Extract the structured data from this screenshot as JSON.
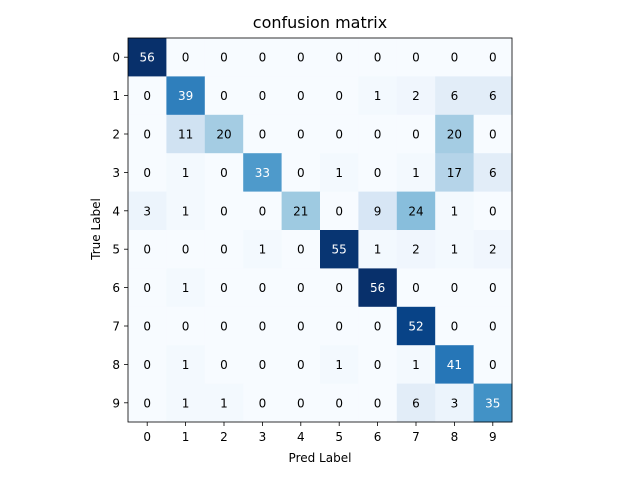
{
  "chart_data": {
    "type": "heatmap",
    "title": "confusion matrix",
    "xlabel": "Pred Label",
    "ylabel": "True Label",
    "x_categories": [
      "0",
      "1",
      "2",
      "3",
      "4",
      "5",
      "6",
      "7",
      "8",
      "9"
    ],
    "y_categories": [
      "0",
      "1",
      "2",
      "3",
      "4",
      "5",
      "6",
      "7",
      "8",
      "9"
    ],
    "colormap": "Blues",
    "value_range": [
      0,
      56
    ],
    "values": [
      [
        56,
        0,
        0,
        0,
        0,
        0,
        0,
        0,
        0,
        0
      ],
      [
        0,
        39,
        0,
        0,
        0,
        0,
        1,
        2,
        6,
        6
      ],
      [
        0,
        11,
        20,
        0,
        0,
        0,
        0,
        0,
        20,
        0
      ],
      [
        0,
        1,
        0,
        33,
        0,
        1,
        0,
        1,
        17,
        6
      ],
      [
        3,
        1,
        0,
        0,
        21,
        0,
        9,
        24,
        1,
        0
      ],
      [
        0,
        0,
        0,
        1,
        0,
        55,
        1,
        2,
        1,
        2
      ],
      [
        0,
        1,
        0,
        0,
        0,
        0,
        56,
        0,
        0,
        0
      ],
      [
        0,
        0,
        0,
        0,
        0,
        0,
        0,
        52,
        0,
        0
      ],
      [
        0,
        1,
        0,
        0,
        0,
        1,
        0,
        1,
        41,
        0
      ],
      [
        0,
        1,
        1,
        0,
        0,
        0,
        0,
        6,
        3,
        35
      ]
    ],
    "colors": {
      "low": "#f7fbff",
      "high": "#08306b",
      "text_light": "#ffffff",
      "text_dark": "#000000",
      "axis": "#000000"
    }
  }
}
